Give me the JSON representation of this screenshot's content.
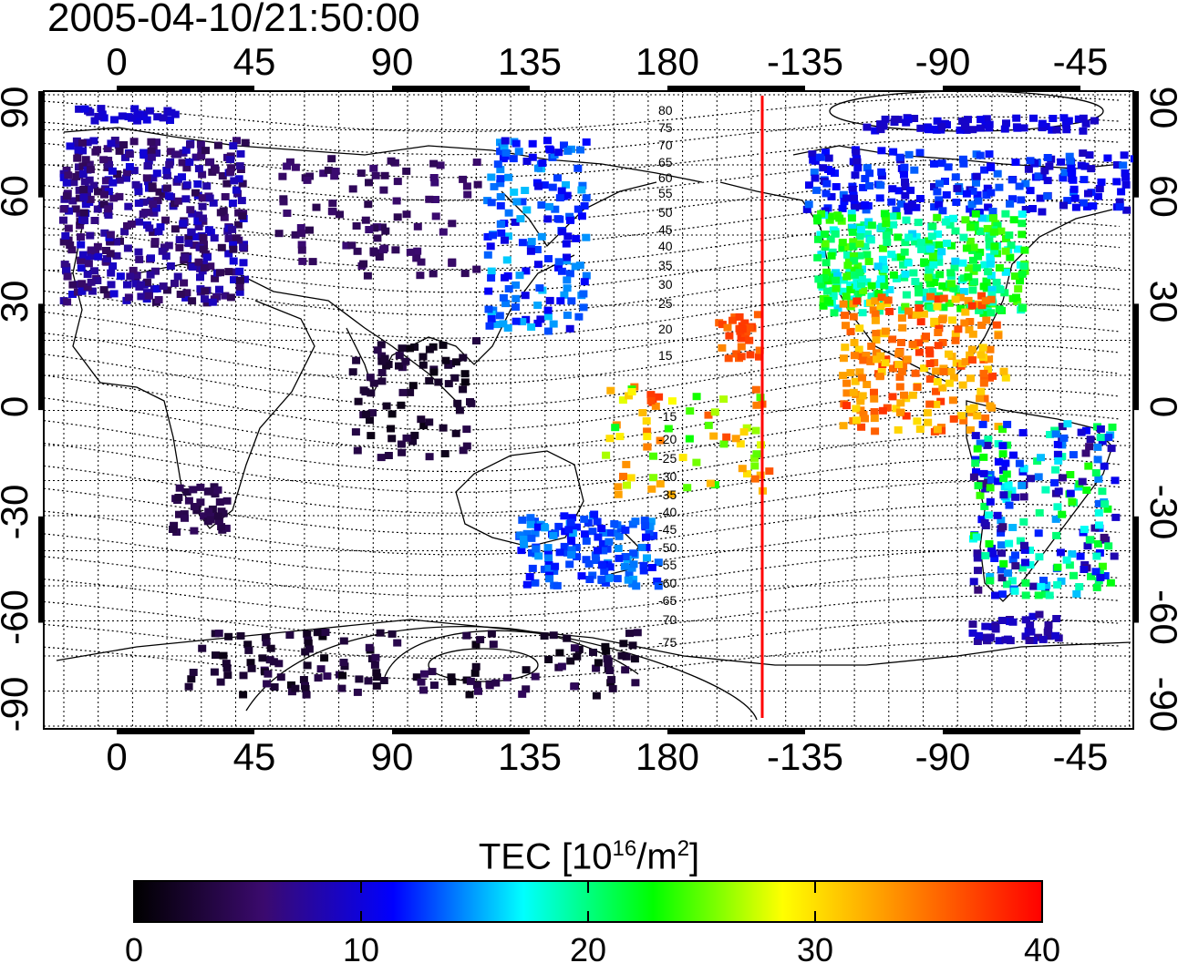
{
  "title": "2005-04-10/21:50:00",
  "map": {
    "lon_ticks": [
      "0",
      "45",
      "90",
      "135",
      "180",
      "-135",
      "-90",
      "-45"
    ],
    "lat_ticks": [
      "90",
      "60",
      "30",
      "0",
      "-30",
      "-60",
      "-90"
    ],
    "contour_labels": [
      "80",
      "75",
      "70",
      "65",
      "60",
      "55",
      "50",
      "45",
      "40",
      "35",
      "30",
      "25",
      "20",
      "15",
      "-15",
      "-20",
      "-25",
      "-30",
      "-35",
      "-40",
      "-45",
      "-50",
      "-55",
      "-60",
      "-65",
      "-70",
      "-75"
    ],
    "terminator_color": "#ff0000"
  },
  "colorbar": {
    "label_main": "TEC  [10",
    "label_exp1": "16",
    "label_mid": "/m",
    "label_exp2": "2",
    "label_end": "]",
    "min": 0,
    "max": 40,
    "ticks": [
      "0",
      "10",
      "20",
      "30",
      "40"
    ],
    "colors": [
      "#000000",
      "#3b0a6e",
      "#0000ff",
      "#00ffff",
      "#00ff00",
      "#ffff00",
      "#ff8000",
      "#ff0000"
    ]
  }
}
